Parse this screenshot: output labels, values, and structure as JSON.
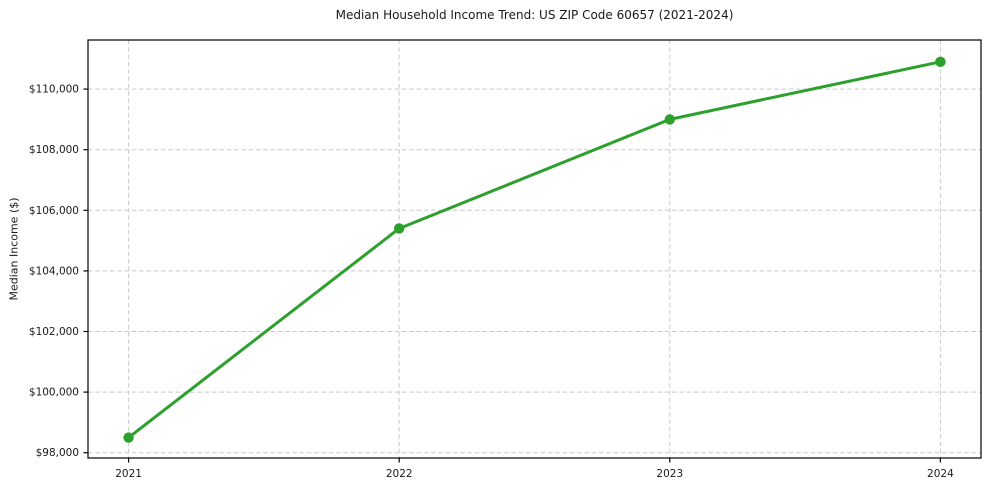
{
  "chart_data": {
    "type": "line",
    "title": "Median Household Income Trend: US ZIP Code 60657 (2021-2024)",
    "ylabel": "Median Income ($)",
    "xlabel": "",
    "x": [
      2021,
      2022,
      2023,
      2024
    ],
    "x_tick_labels": [
      "2021",
      "2022",
      "2023",
      "2024"
    ],
    "values": [
      98500,
      105400,
      109000,
      110900
    ],
    "y_ticks": [
      98000,
      100000,
      102000,
      104000,
      106000,
      108000,
      110000
    ],
    "y_tick_labels": [
      "$98,000",
      "$100,000",
      "$102,000",
      "$104,000",
      "$106,000",
      "$108,000",
      "$110,000"
    ],
    "xlim": [
      2020.85,
      2024.15
    ],
    "ylim": [
      97825,
      111620
    ],
    "grid": true,
    "grid_style": "dashed",
    "line_color": "#2ca02c",
    "marker": "circle",
    "marker_radius": 5.2,
    "legend_position": "none",
    "grid_color": "#c9c9c9",
    "text_color": "#1a1a1a"
  }
}
